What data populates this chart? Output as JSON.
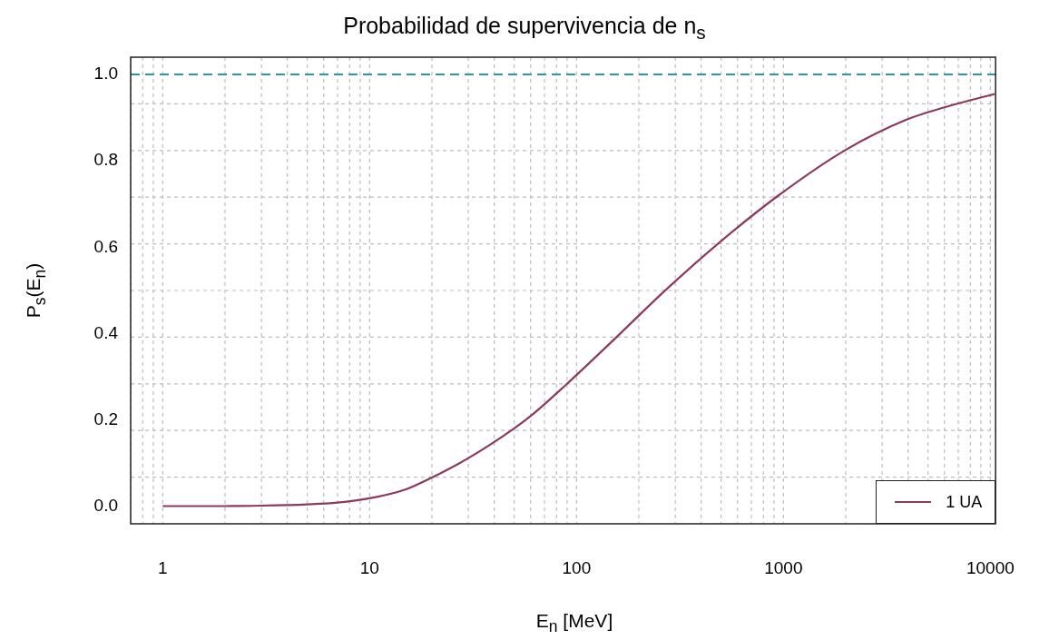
{
  "chart_data": {
    "type": "line",
    "title": "Probabilidad de supervivencia de n$_{s}$",
    "xlabel": "E$_{n}$ [MeV]",
    "ylabel": "P$_{s}$(E$_{n}$)",
    "log": "x",
    "grid": true,
    "legend": "bottom right",
    "line_style": "solid",
    "marker": "none",
    "xlim": [
      0.7,
      10600
    ],
    "xticks": [
      1,
      10,
      100,
      1000,
      10000
    ],
    "ylim": [
      -0.04,
      1.04
    ],
    "yticks": [
      {
        "value": 0,
        "label": "0.0"
      },
      {
        "value": 0.2,
        "label": "0.2"
      },
      {
        "value": 0.4,
        "label": "0.4"
      },
      {
        "value": 0.6,
        "label": "0.6"
      },
      {
        "value": 0.8,
        "label": "0.8"
      },
      {
        "value": 1,
        "label": "1.0"
      }
    ],
    "ref_lines": [
      {
        "axis": "y",
        "value": 1,
        "color": "#2a9a9a",
        "line_style": "dashed"
      }
    ],
    "series": [
      {
        "name": "1 UA",
        "color": "#8b3a5e",
        "x": [
          1,
          2,
          3,
          5,
          7,
          10,
          15,
          20,
          30,
          50,
          62,
          89,
          156,
          264,
          479,
          934,
          1990,
          3910,
          6000,
          10500
        ],
        "values": [
          0.001,
          0.001,
          0.002,
          0.005,
          0.009,
          0.019,
          0.04,
          0.067,
          0.112,
          0.181,
          0.215,
          0.282,
          0.392,
          0.497,
          0.607,
          0.718,
          0.825,
          0.895,
          0.924,
          0.955
        ]
      }
    ]
  }
}
